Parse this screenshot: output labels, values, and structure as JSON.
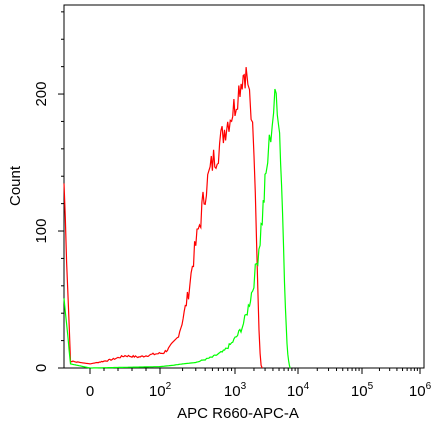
{
  "chart_data": {
    "type": "histogram",
    "title": "",
    "xlabel": "APC R660-APC-A",
    "ylabel": "Count",
    "x_scale": "biexponential (log)",
    "x_ticks": [
      "0",
      "10^2",
      "10^3",
      "10^4",
      "10^5",
      "10^6"
    ],
    "y_ticks": [
      "0",
      "100",
      "200"
    ],
    "ylim": [
      0,
      265
    ],
    "grid": false,
    "legend": "none",
    "series": [
      {
        "color": "#ff0000",
        "points": [
          [
            -200,
            135
          ],
          [
            -150,
            5
          ],
          [
            0,
            3
          ],
          [
            30,
            6
          ],
          [
            50,
            9
          ],
          [
            70,
            8
          ],
          [
            90,
            10
          ],
          [
            110,
            11
          ],
          [
            130,
            14
          ],
          [
            150,
            18
          ],
          [
            170,
            22
          ],
          [
            190,
            30
          ],
          [
            210,
            40
          ],
          [
            240,
            55
          ],
          [
            270,
            75
          ],
          [
            300,
            90
          ],
          [
            350,
            110
          ],
          [
            400,
            130
          ],
          [
            450,
            140
          ],
          [
            500,
            150
          ],
          [
            600,
            160
          ],
          [
            700,
            172
          ],
          [
            800,
            180
          ],
          [
            900,
            186
          ],
          [
            1000,
            192
          ],
          [
            1100,
            200
          ],
          [
            1200,
            207
          ],
          [
            1300,
            212
          ],
          [
            1400,
            216
          ],
          [
            1500,
            214
          ],
          [
            1600,
            208
          ],
          [
            1700,
            198
          ],
          [
            1800,
            185
          ],
          [
            1900,
            170
          ],
          [
            2000,
            150
          ],
          [
            2100,
            125
          ],
          [
            2200,
            95
          ],
          [
            2300,
            60
          ],
          [
            2400,
            30
          ],
          [
            2500,
            10
          ],
          [
            2600,
            2
          ],
          [
            2700,
            0
          ]
        ]
      },
      {
        "color": "#00ff00",
        "points": [
          [
            -200,
            55
          ],
          [
            -150,
            3
          ],
          [
            0,
            0
          ],
          [
            100,
            1
          ],
          [
            150,
            2
          ],
          [
            200,
            3
          ],
          [
            300,
            4
          ],
          [
            500,
            8
          ],
          [
            700,
            12
          ],
          [
            900,
            18
          ],
          [
            1100,
            24
          ],
          [
            1300,
            30
          ],
          [
            1500,
            38
          ],
          [
            1700,
            48
          ],
          [
            1900,
            58
          ],
          [
            2100,
            70
          ],
          [
            2300,
            82
          ],
          [
            2500,
            95
          ],
          [
            2700,
            110
          ],
          [
            2900,
            125
          ],
          [
            3100,
            140
          ],
          [
            3300,
            152
          ],
          [
            3500,
            163
          ],
          [
            3700,
            172
          ],
          [
            3900,
            180
          ],
          [
            4100,
            188
          ],
          [
            4300,
            195
          ],
          [
            4500,
            199
          ],
          [
            4700,
            194
          ],
          [
            4900,
            185
          ],
          [
            5100,
            172
          ],
          [
            5300,
            155
          ],
          [
            5500,
            135
          ],
          [
            5700,
            112
          ],
          [
            5900,
            90
          ],
          [
            6100,
            68
          ],
          [
            6300,
            48
          ],
          [
            6500,
            30
          ],
          [
            6700,
            18
          ],
          [
            6900,
            10
          ],
          [
            7100,
            5
          ],
          [
            7300,
            2
          ],
          [
            7500,
            0
          ]
        ]
      }
    ]
  }
}
